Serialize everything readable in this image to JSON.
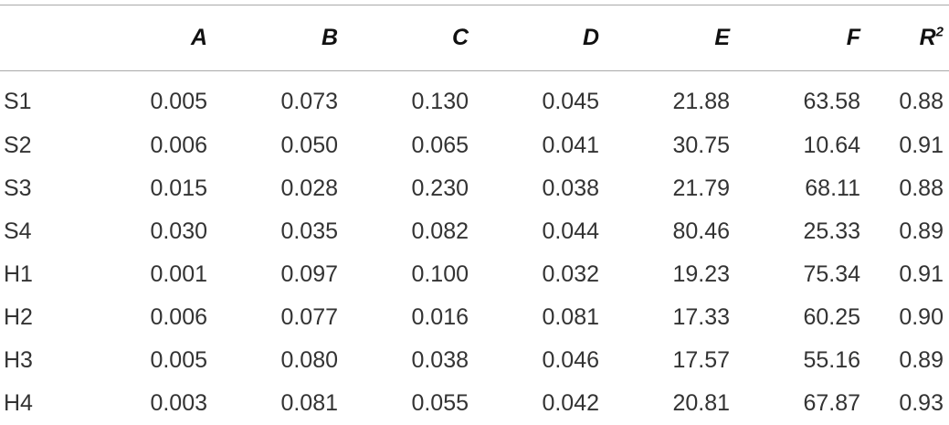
{
  "table": {
    "headers": [
      "",
      "A",
      "B",
      "C",
      "D",
      "E",
      "F",
      "R"
    ],
    "r_superscript": "2",
    "rows": [
      [
        "S1",
        "0.005",
        "0.073",
        "0.130",
        "0.045",
        "21.88",
        "63.58",
        "0.88"
      ],
      [
        "S2",
        "0.006",
        "0.050",
        "0.065",
        "0.041",
        "30.75",
        "10.64",
        "0.91"
      ],
      [
        "S3",
        "0.015",
        "0.028",
        "0.230",
        "0.038",
        "21.79",
        "68.11",
        "0.88"
      ],
      [
        "S4",
        "0.030",
        "0.035",
        "0.082",
        "0.044",
        "80.46",
        "25.33",
        "0.89"
      ],
      [
        "H1",
        "0.001",
        "0.097",
        "0.100",
        "0.032",
        "19.23",
        "75.34",
        "0.91"
      ],
      [
        "H2",
        "0.006",
        "0.077",
        "0.016",
        "0.081",
        "17.33",
        "60.25",
        "0.90"
      ],
      [
        "H3",
        "0.005",
        "0.080",
        "0.038",
        "0.046",
        "17.57",
        "55.16",
        "0.89"
      ],
      [
        "H4",
        "0.003",
        "0.081",
        "0.055",
        "0.042",
        "20.81",
        "67.87",
        "0.93"
      ]
    ]
  }
}
